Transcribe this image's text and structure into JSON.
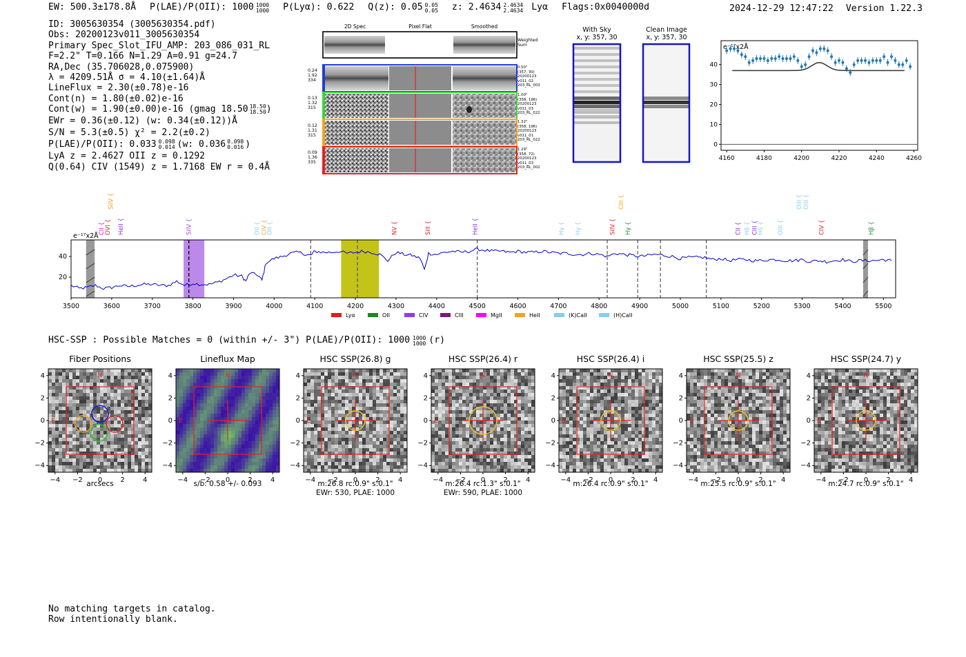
{
  "header": {
    "ew": "EW: 500.3±178.8Å",
    "plae": "P(LAE)/P(OII): 1000",
    "plae_hi": "1000",
    "plae_lo": "1000",
    "plya": "P(Lyα): 0.622",
    "qz": "Q(z): 0.05",
    "qz_hi": "0.05",
    "qz_lo": "0.05",
    "z": "z: 2.4634",
    "z_hi": "2.4634",
    "z_lo": "2.4634",
    "z_line": "Lyα",
    "flags": "Flags:0x0040000d",
    "datetime": "2024-12-29 12:47:22",
    "version": "Version 1.22.3"
  },
  "info": {
    "lines": [
      "ID: 3005630354 (3005630354.pdf)",
      "Obs: 20200123v011_3005630354",
      "Primary Spec_Slot_IFU_AMP: 203_086_031_RL",
      "F=2.2\"  T=0.166  N=1.29  A=0.91  g=24.7",
      "RA,Dec (35.706028,0.075900)",
      "λ = 4209.51Å  σ = 4.10(±1.64)Å",
      "LineFlux = 2.30(±0.78)e-16",
      "Cont(n) = 1.80(±0.02)e-16"
    ],
    "contw": "Cont(w) = 1.90(±0.00)e-16 (gmag 18.50",
    "contw_hi": "18.50",
    "contw_lo": "18.50",
    "contw_end": ")",
    "ewr": "EWr = 0.36(±0.12) (w: 0.34(±0.12))Å",
    "sn": "S/N = 5.3(±0.5)  χ² = 2.2(±0.2)",
    "plae2": "P(LAE)/P(OII): 0.033",
    "plae2_hi": "0.098",
    "plae2_lo": "0.014",
    "plae2_w": "(w: 0.036",
    "plae2_w_hi": "0.098",
    "plae2_w_lo": "0.016",
    "plae2_end": ")",
    "lya": "LyA z = 2.4627  OII z = 0.1292",
    "q": "Q(0.64) CIV (1549) z = 1.7168  EW r = 0.4Å"
  },
  "spec2d": {
    "col_titles": [
      "2D Spec",
      "Pixel Flat",
      "Smoothed"
    ],
    "weighted_label": "Weighted Sum",
    "rows": [
      {
        "vals": [
          "0.24",
          "1.92",
          "334"
        ],
        "meta": [
          "0.50\"",
          "(357, 30)",
          "20200123",
          "v011_02",
          "203_RL_003"
        ],
        "color": "#1f3fd6"
      },
      {
        "vals": [
          "0.13",
          "1.32",
          "315"
        ],
        "meta": [
          "1.00\"",
          "(358, 196)",
          "20200123",
          "v011_03",
          "203_RL_022"
        ],
        "color": "#3ad63a"
      },
      {
        "vals": [
          "0.12",
          "1.31",
          "315"
        ],
        "meta": [
          "1.32\"",
          "(358, 196)",
          "20200123",
          "v011_01",
          "203_RL_022"
        ],
        "color": "#f2a41c"
      },
      {
        "vals": [
          "0.09",
          "1.36",
          "335"
        ],
        "meta": [
          "1.29\"",
          "(358, 72)",
          "20200123",
          "v011_03",
          "203_RL_002"
        ],
        "color": "#e82020"
      }
    ]
  },
  "sky": {
    "with_sky_title": "With Sky",
    "with_sky_coords": "x, y: 357, 30",
    "clean_title": "Clean Image",
    "clean_coords": "x, y: 357, 30"
  },
  "zoom_chart": {
    "ylabel": "e⁻¹⁷x2Å"
  },
  "full_spectrum": {
    "ylabel": "e⁻¹⁷x2Å"
  },
  "hsc": {
    "summary": "HSC-SSP : Possible Matches = 0 (within +/- 3\")  P(LAE)/P(OII): 1000",
    "summary_hi": "1000",
    "summary_lo": "1000",
    "summary_end": "(r)"
  },
  "cutouts": [
    {
      "title": "Fiber Positions",
      "cap1": "arcsecs",
      "cap2": ""
    },
    {
      "title": "Lineflux Map",
      "cap1": "s/b: 0.58 +/- 0.093",
      "cap2": ""
    },
    {
      "title": "HSC SSP(26.8) g",
      "cap1": "m:26.8 rc:0.9\"  s:0.1\"",
      "cap2": "EWr: 530, PLAE: 1000"
    },
    {
      "title": "HSC SSP(26.4) r",
      "cap1": "m:26.4 rc:1.3\"  s:0.1\"",
      "cap2": "EWr: 590, PLAE: 1000"
    },
    {
      "title": "HSC SSP(26.4) i",
      "cap1": "m:26.4 rc:0.9\"  s:0.1\"",
      "cap2": ""
    },
    {
      "title": "HSC SSP(25.5) z",
      "cap1": "m:25.5 rc:0.9\"  s:0.1\"",
      "cap2": ""
    },
    {
      "title": "HSC SSP(24.7) y",
      "cap1": "m:24.7 rc:0.9\"  s:0.1\"",
      "cap2": ""
    }
  ],
  "footer": {
    "line1": "No matching targets in catalog.",
    "line2": "Row intentionally blank."
  },
  "chart_data": [
    {
      "type": "line",
      "title": "",
      "xlabel": "",
      "ylabel": "e⁻¹⁷x2Å",
      "xlim": [
        4157,
        4262
      ],
      "ylim": [
        -3,
        52
      ],
      "xticks": [
        4160,
        4180,
        4200,
        4220,
        4240,
        4260
      ],
      "yticks": [
        0,
        10,
        20,
        30,
        40
      ],
      "series": [
        {
          "name": "data",
          "style": "errorbar",
          "x": [
            4160,
            4162,
            4164,
            4166,
            4168,
            4170,
            4172,
            4174,
            4176,
            4178,
            4180,
            4182,
            4184,
            4186,
            4188,
            4190,
            4192,
            4194,
            4196,
            4198,
            4200,
            4202,
            4204,
            4206,
            4208,
            4210,
            4212,
            4214,
            4216,
            4218,
            4220,
            4222,
            4224,
            4226,
            4228,
            4230,
            4232,
            4234,
            4236,
            4238,
            4240,
            4242,
            4244,
            4246,
            4248,
            4250,
            4252,
            4254,
            4256,
            4258
          ],
          "y": [
            47,
            48,
            48,
            47,
            45,
            44,
            41,
            42,
            43,
            43,
            43,
            42,
            43,
            43,
            44,
            43,
            43,
            43,
            44,
            42,
            39,
            40,
            44,
            47,
            46,
            48,
            48,
            47,
            44,
            41,
            42,
            41,
            38,
            36,
            40,
            42,
            42,
            42,
            41,
            42,
            42,
            42,
            44,
            41,
            44,
            42,
            40,
            40,
            42,
            39
          ]
        },
        {
          "name": "model",
          "style": "line",
          "x": [
            4163,
            4255
          ],
          "continuum": 37,
          "peak_center": 4209.5,
          "peak_sigma": 4.1,
          "peak_amp": 4
        }
      ]
    },
    {
      "type": "line",
      "title": "",
      "xlabel": "",
      "ylabel": "e⁻¹⁷x2Å",
      "xlim": [
        3500,
        5530
      ],
      "ylim": [
        0,
        56
      ],
      "xticks": [
        3500,
        3600,
        3700,
        3800,
        3900,
        4000,
        4100,
        4200,
        4300,
        4400,
        4500,
        4600,
        4700,
        4800,
        4900,
        5000,
        5100,
        5200,
        5300,
        5400,
        5500
      ],
      "yticks": [
        20,
        40
      ],
      "series": [
        {
          "name": "spectrum",
          "x": [
            3500,
            3520,
            3540,
            3560,
            3580,
            3600,
            3620,
            3640,
            3660,
            3680,
            3700,
            3720,
            3740,
            3760,
            3780,
            3800,
            3820,
            3840,
            3860,
            3880,
            3900,
            3920,
            3930,
            3940,
            3960,
            3970,
            3980,
            4000,
            4020,
            4040,
            4060,
            4080,
            4090,
            4100,
            4120,
            4140,
            4160,
            4180,
            4200,
            4220,
            4240,
            4260,
            4280,
            4300,
            4320,
            4340,
            4360,
            4370,
            4380,
            4400,
            4420,
            4440,
            4460,
            4480,
            4500,
            4520,
            4540,
            4560,
            4580,
            4600,
            4620,
            4640,
            4660,
            4680,
            4700,
            4720,
            4740,
            4760,
            4780,
            4800,
            4820,
            4840,
            4860,
            4880,
            4900,
            4920,
            4940,
            4960,
            4980,
            5000,
            5020,
            5040,
            5060,
            5080,
            5100,
            5120,
            5140,
            5160,
            5180,
            5200,
            5220,
            5240,
            5260,
            5280,
            5300,
            5320,
            5340,
            5360,
            5380,
            5400,
            5420,
            5440,
            5460,
            5480,
            5500,
            5520
          ],
          "y": [
            12,
            9,
            10,
            12,
            9,
            10,
            12,
            11,
            12,
            13,
            13,
            12,
            12,
            16,
            12,
            14,
            13,
            13,
            15,
            18,
            22,
            21,
            16,
            24,
            22,
            17,
            34,
            38,
            40,
            43,
            44,
            42,
            41,
            45,
            44,
            44,
            45,
            43,
            44,
            45,
            44,
            42,
            36,
            44,
            42,
            41,
            38,
            27,
            43,
            42,
            44,
            45,
            44,
            45,
            47,
            46,
            45,
            45,
            44,
            45,
            44,
            44,
            45,
            44,
            43,
            43,
            42,
            42,
            43,
            42,
            40,
            43,
            42,
            41,
            40,
            41,
            42,
            41,
            40,
            38,
            39,
            39,
            39,
            37,
            38,
            36,
            37,
            37,
            36,
            36,
            37,
            37,
            36,
            36,
            37,
            35,
            36,
            35,
            36,
            37,
            35,
            36,
            36,
            36,
            37,
            36
          ]
        }
      ],
      "line_markers": [
        {
          "label": "CII",
          "x": 3575,
          "color": "#ff00ff"
        },
        {
          "label": "OVI",
          "x": 3590,
          "color": "#e41a1c"
        },
        {
          "label": "SiIV",
          "x": 3598,
          "color": "#f29b1c"
        },
        {
          "label": "HeII",
          "x": 3622,
          "color": "#8e2bd6"
        },
        {
          "label": "SiIV",
          "x": 3790,
          "color": "#a34bd6"
        },
        {
          "label": "OII",
          "x": 3958,
          "color": "#87ceeb"
        },
        {
          "label": "CIV",
          "x": 3975,
          "color": "#f2a41c"
        },
        {
          "label": "OII",
          "x": 3988,
          "color": "#87ceeb"
        },
        {
          "label": "NV",
          "x": 4296,
          "color": "#e41a1c"
        },
        {
          "label": "SiII",
          "x": 4378,
          "color": "#e41a1c"
        },
        {
          "label": "HeII",
          "x": 4495,
          "color": "#8e2bd6"
        },
        {
          "label": "Hγ",
          "x": 4707,
          "color": "#87ceeb"
        },
        {
          "label": "Hγ",
          "x": 4748,
          "color": "#87ceeb"
        },
        {
          "label": "SiIV",
          "x": 4833,
          "color": "#e41a1c"
        },
        {
          "label": "CIII",
          "x": 4854,
          "color": "#f2a41c"
        },
        {
          "label": "Hγ",
          "x": 4871,
          "color": "#228b22"
        },
        {
          "label": "CII",
          "x": 5142,
          "color": "#8e2bd6"
        },
        {
          "label": "Hδ",
          "x": 5164,
          "color": "#87ceeb"
        },
        {
          "label": "CIII",
          "x": 5183,
          "color": "#8e2bd6"
        },
        {
          "label": "Hδ",
          "x": 5197,
          "color": "#87ceeb"
        },
        {
          "label": "OIII",
          "x": 5246,
          "color": "#87ceeb"
        },
        {
          "label": "OIII",
          "x": 5292,
          "color": "#87ceeb"
        },
        {
          "label": "OIII",
          "x": 5309,
          "color": "#87ceeb"
        },
        {
          "label": "CIV",
          "x": 5347,
          "color": "#e41a1c"
        },
        {
          "label": "Hβ",
          "x": 5470,
          "color": "#228b22"
        }
      ],
      "dashed_lines": [
        3790,
        4090,
        4205,
        4500,
        4820,
        4895,
        4951,
        5064
      ],
      "bands": [
        {
          "from": 3537,
          "to": 3558,
          "color": "#999999",
          "hatch": true
        },
        {
          "from": 3777,
          "to": 3828,
          "color": "#b57ce8",
          "hatch": false
        },
        {
          "from": 4165,
          "to": 4258,
          "color": "#bcbc00",
          "hatch": false
        },
        {
          "from": 5450,
          "to": 5462,
          "color": "#999999",
          "hatch": true
        }
      ],
      "legend": [
        {
          "label": "Lyα",
          "color": "#e41a1c"
        },
        {
          "label": "OII",
          "color": "#1a8a1a"
        },
        {
          "label": "CIV",
          "color": "#8e3bf0"
        },
        {
          "label": "CIII",
          "color": "#7a1a7a"
        },
        {
          "label": "MgII",
          "color": "#ff00ff"
        },
        {
          "label": "HeII",
          "color": "#f2a41c"
        },
        {
          "label": "(K)CaII",
          "color": "#87ceeb"
        },
        {
          "label": "(H)CaII",
          "color": "#87ceeb"
        }
      ]
    }
  ]
}
